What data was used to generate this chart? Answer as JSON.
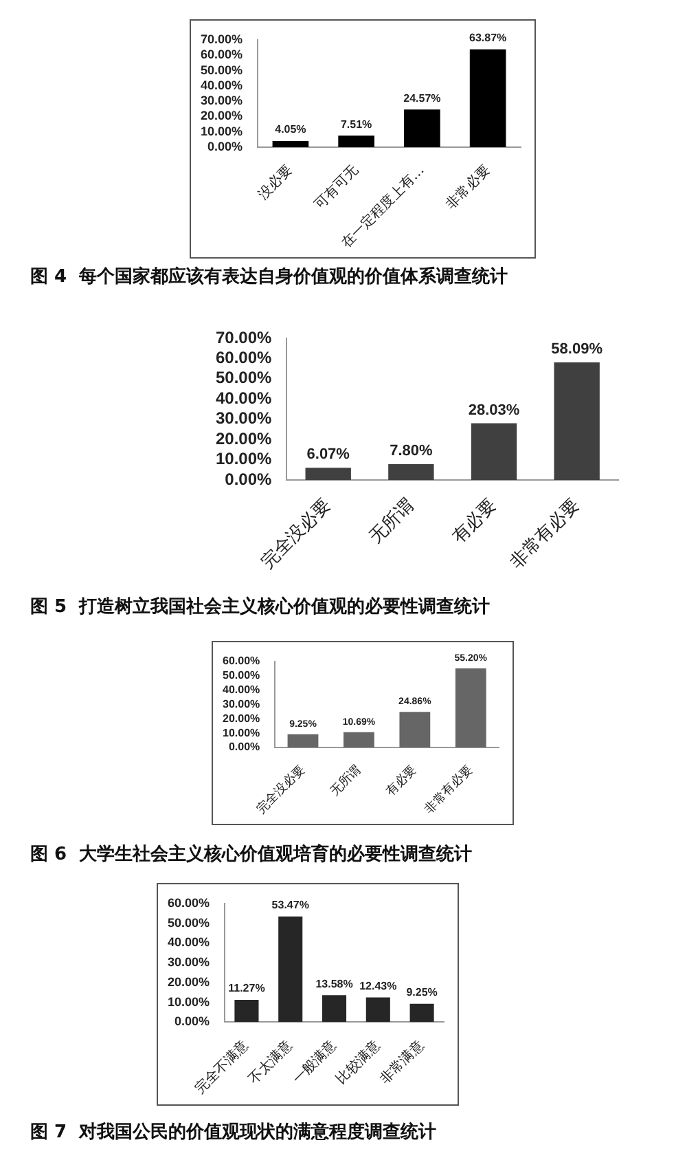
{
  "chart_data": [
    {
      "type": "bar",
      "title": "图 4  每个国家都应该有表达自身价值观的价值体系调查统计",
      "categories": [
        "没必要",
        "可有可无",
        "在一定程度上有…",
        "非常必要"
      ],
      "values": [
        4.05,
        7.51,
        24.57,
        63.87
      ],
      "value_labels": [
        "4.05%",
        "7.51%",
        "24.57%",
        "63.87%"
      ],
      "color": "#000000",
      "ylim": [
        0,
        70
      ],
      "yticks": [
        {
          "value": 0,
          "label": "0.00%"
        },
        {
          "value": 10,
          "label": "10.00%"
        },
        {
          "value": 20,
          "label": "20.00%"
        },
        {
          "value": 30,
          "label": "30.00%"
        },
        {
          "value": 40,
          "label": "40.00%"
        },
        {
          "value": 50,
          "label": "50.00%"
        },
        {
          "value": 60,
          "label": "60.00%"
        },
        {
          "value": 70,
          "label": "70.00%"
        }
      ],
      "grid": false,
      "legend": false
    },
    {
      "type": "bar",
      "title": "图 5  打造树立我国社会主义核心价值观的必要性调查统计",
      "categories": [
        "完全没必要",
        "无所谓",
        "有必要",
        "非常有必要"
      ],
      "values": [
        6.07,
        7.8,
        28.03,
        58.09
      ],
      "value_labels": [
        "6.07%",
        "7.80%",
        "28.03%",
        "58.09%"
      ],
      "color": "#404040",
      "ylim": [
        0,
        70
      ],
      "yticks": [
        {
          "value": 0,
          "label": "0.00%"
        },
        {
          "value": 10,
          "label": "10.00%"
        },
        {
          "value": 20,
          "label": "20.00%"
        },
        {
          "value": 30,
          "label": "30.00%"
        },
        {
          "value": 40,
          "label": "40.00%"
        },
        {
          "value": 50,
          "label": "50.00%"
        },
        {
          "value": 60,
          "label": "60.00%"
        },
        {
          "value": 70,
          "label": "70.00%"
        }
      ],
      "grid": false,
      "legend": false
    },
    {
      "type": "bar",
      "title": "图 6  大学生社会主义核心价值观培育的必要性调查统计",
      "categories": [
        "完全没必要",
        "无所谓",
        "有必要",
        "非常有必要"
      ],
      "values": [
        9.25,
        10.69,
        24.86,
        55.2
      ],
      "value_labels": [
        "9.25%",
        "10.69%",
        "24.86%",
        "55.20%"
      ],
      "color": "#666666",
      "ylim": [
        0,
        60
      ],
      "yticks": [
        {
          "value": 0,
          "label": "0.00%"
        },
        {
          "value": 10,
          "label": "10.00%"
        },
        {
          "value": 20,
          "label": "20.00%"
        },
        {
          "value": 30,
          "label": "30.00%"
        },
        {
          "value": 40,
          "label": "40.00%"
        },
        {
          "value": 50,
          "label": "50.00%"
        },
        {
          "value": 60,
          "label": "60.00%"
        }
      ],
      "grid": false,
      "legend": false
    },
    {
      "type": "bar",
      "title": "图 7  对我国公民的价值观现状的满意程度调查统计",
      "categories": [
        "完全不满意",
        "不太满意",
        "一般满意",
        "比较满意",
        "非常满意"
      ],
      "values": [
        11.27,
        53.47,
        13.58,
        12.43,
        9.25
      ],
      "value_labels": [
        "11.27%",
        "53.47%",
        "13.58%",
        "12.43%",
        "9.25%"
      ],
      "color": "#262626",
      "ylim": [
        0,
        60
      ],
      "yticks": [
        {
          "value": 0,
          "label": "0.00%"
        },
        {
          "value": 10,
          "label": "10.00%"
        },
        {
          "value": 20,
          "label": "20.00%"
        },
        {
          "value": 30,
          "label": "30.00%"
        },
        {
          "value": 40,
          "label": "40.00%"
        },
        {
          "value": 50,
          "label": "50.00%"
        },
        {
          "value": 60,
          "label": "60.00%"
        }
      ],
      "grid": false,
      "legend": false
    }
  ]
}
